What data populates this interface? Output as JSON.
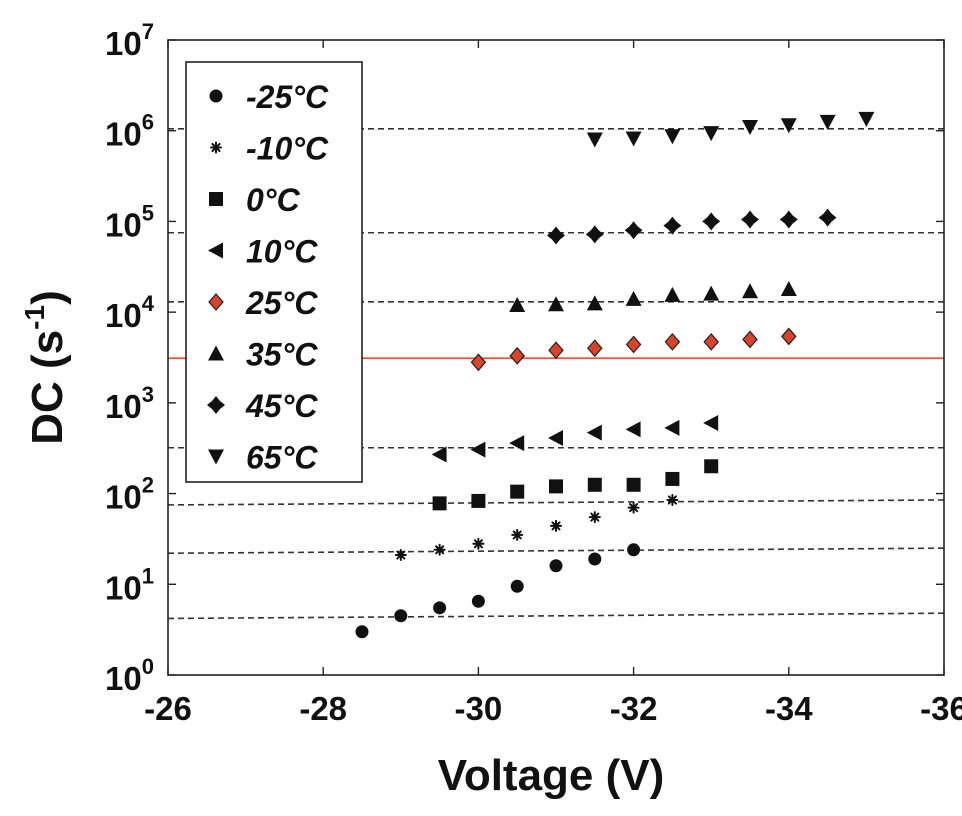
{
  "chart_data": {
    "type": "scatter",
    "xlabel": "Voltage (V)",
    "ylabel_main": "DC (s",
    "ylabel_sup": "-1",
    "ylabel_close": ")",
    "xlim": [
      -26,
      -36
    ],
    "ylim": [
      1,
      10000000
    ],
    "y_scale": "log",
    "x_ticks": [
      -26,
      -28,
      -30,
      -32,
      -34,
      -36
    ],
    "x_tick_labels": [
      "-26",
      "-28",
      "-30",
      "-32",
      "-34",
      "-36"
    ],
    "y_ticks": [
      {
        "value": 1,
        "base": "10",
        "exp": "0"
      },
      {
        "value": 10,
        "base": "10",
        "exp": "1"
      },
      {
        "value": 100,
        "base": "10",
        "exp": "2"
      },
      {
        "value": 1000,
        "base": "10",
        "exp": "3"
      },
      {
        "value": 10000,
        "base": "10",
        "exp": "4"
      },
      {
        "value": 100000,
        "base": "10",
        "exp": "5"
      },
      {
        "value": 1000000,
        "base": "10",
        "exp": "6"
      },
      {
        "value": 10000000,
        "base": "10",
        "exp": "7"
      }
    ],
    "legend_position": "top-left",
    "grid": false,
    "series": [
      {
        "name": "-25",
        "marker": "circle",
        "color": "#111111",
        "x": [
          -28.5,
          -29,
          -29.5,
          -30,
          -30.5,
          -31,
          -31.5,
          -32
        ],
        "y": [
          3.0,
          4.5,
          5.5,
          6.5,
          9.5,
          16,
          19,
          24
        ],
        "level": 4.2,
        "level_end": 4.8
      },
      {
        "name": "-10",
        "marker": "star",
        "color": "#111111",
        "x": [
          -29,
          -29.5,
          -30,
          -30.5,
          -31,
          -31.5,
          -32,
          -32.5
        ],
        "y": [
          21,
          24,
          28,
          35,
          44,
          55,
          70,
          85
        ],
        "level": 22,
        "level_end": 25
      },
      {
        "name": "0",
        "marker": "square",
        "color": "#111111",
        "x": [
          -29.5,
          -30,
          -30.5,
          -31,
          -31.5,
          -32,
          -32.5,
          -33
        ],
        "y": [
          78,
          83,
          105,
          120,
          125,
          125,
          145,
          200
        ],
        "level": 75,
        "level_end": 85
      },
      {
        "name": "10",
        "marker": "triangle-left",
        "color": "#111111",
        "x": [
          -29.5,
          -30,
          -30.5,
          -31,
          -31.5,
          -32,
          -32.5,
          -33
        ],
        "y": [
          270,
          305,
          360,
          410,
          470,
          510,
          530,
          600
        ],
        "level": 320,
        "level_end": 320
      },
      {
        "name": "25",
        "marker": "diamond",
        "color": "#d9432b",
        "x": [
          -30,
          -30.5,
          -31,
          -31.5,
          -32,
          -32.5,
          -33,
          -33.5,
          -34
        ],
        "y": [
          2800,
          3300,
          3800,
          4000,
          4400,
          4700,
          4700,
          5000,
          5400
        ],
        "level": 3100,
        "level_end": 3100
      },
      {
        "name": "35",
        "marker": "triangle-up",
        "color": "#111111",
        "x": [
          -30.5,
          -31,
          -31.5,
          -32,
          -32.5,
          -33,
          -33.5,
          -34
        ],
        "y": [
          12000,
          12200,
          12500,
          14000,
          15500,
          16000,
          17000,
          18000
        ],
        "level": 13000,
        "level_end": 13000
      },
      {
        "name": "45",
        "marker": "plus-diamond",
        "color": "#111111",
        "x": [
          -31,
          -31.5,
          -32,
          -32.5,
          -33,
          -33.5,
          -34,
          -34.5
        ],
        "y": [
          70000,
          72000,
          80000,
          90000,
          100000,
          105000,
          105000,
          110000
        ],
        "level": 75000,
        "level_end": 75000
      },
      {
        "name": "65",
        "marker": "triangle-down",
        "color": "#111111",
        "x": [
          -31.5,
          -32,
          -32.5,
          -33,
          -33.5,
          -34,
          -34.5,
          -35
        ],
        "y": [
          800000,
          820000,
          870000,
          940000,
          1100000,
          1150000,
          1250000,
          1350000
        ],
        "level": 1050000,
        "level_end": 1050000
      }
    ],
    "legend_suffix": "°C",
    "reference_line": {
      "y": 3100,
      "color": "#e8503a"
    }
  }
}
